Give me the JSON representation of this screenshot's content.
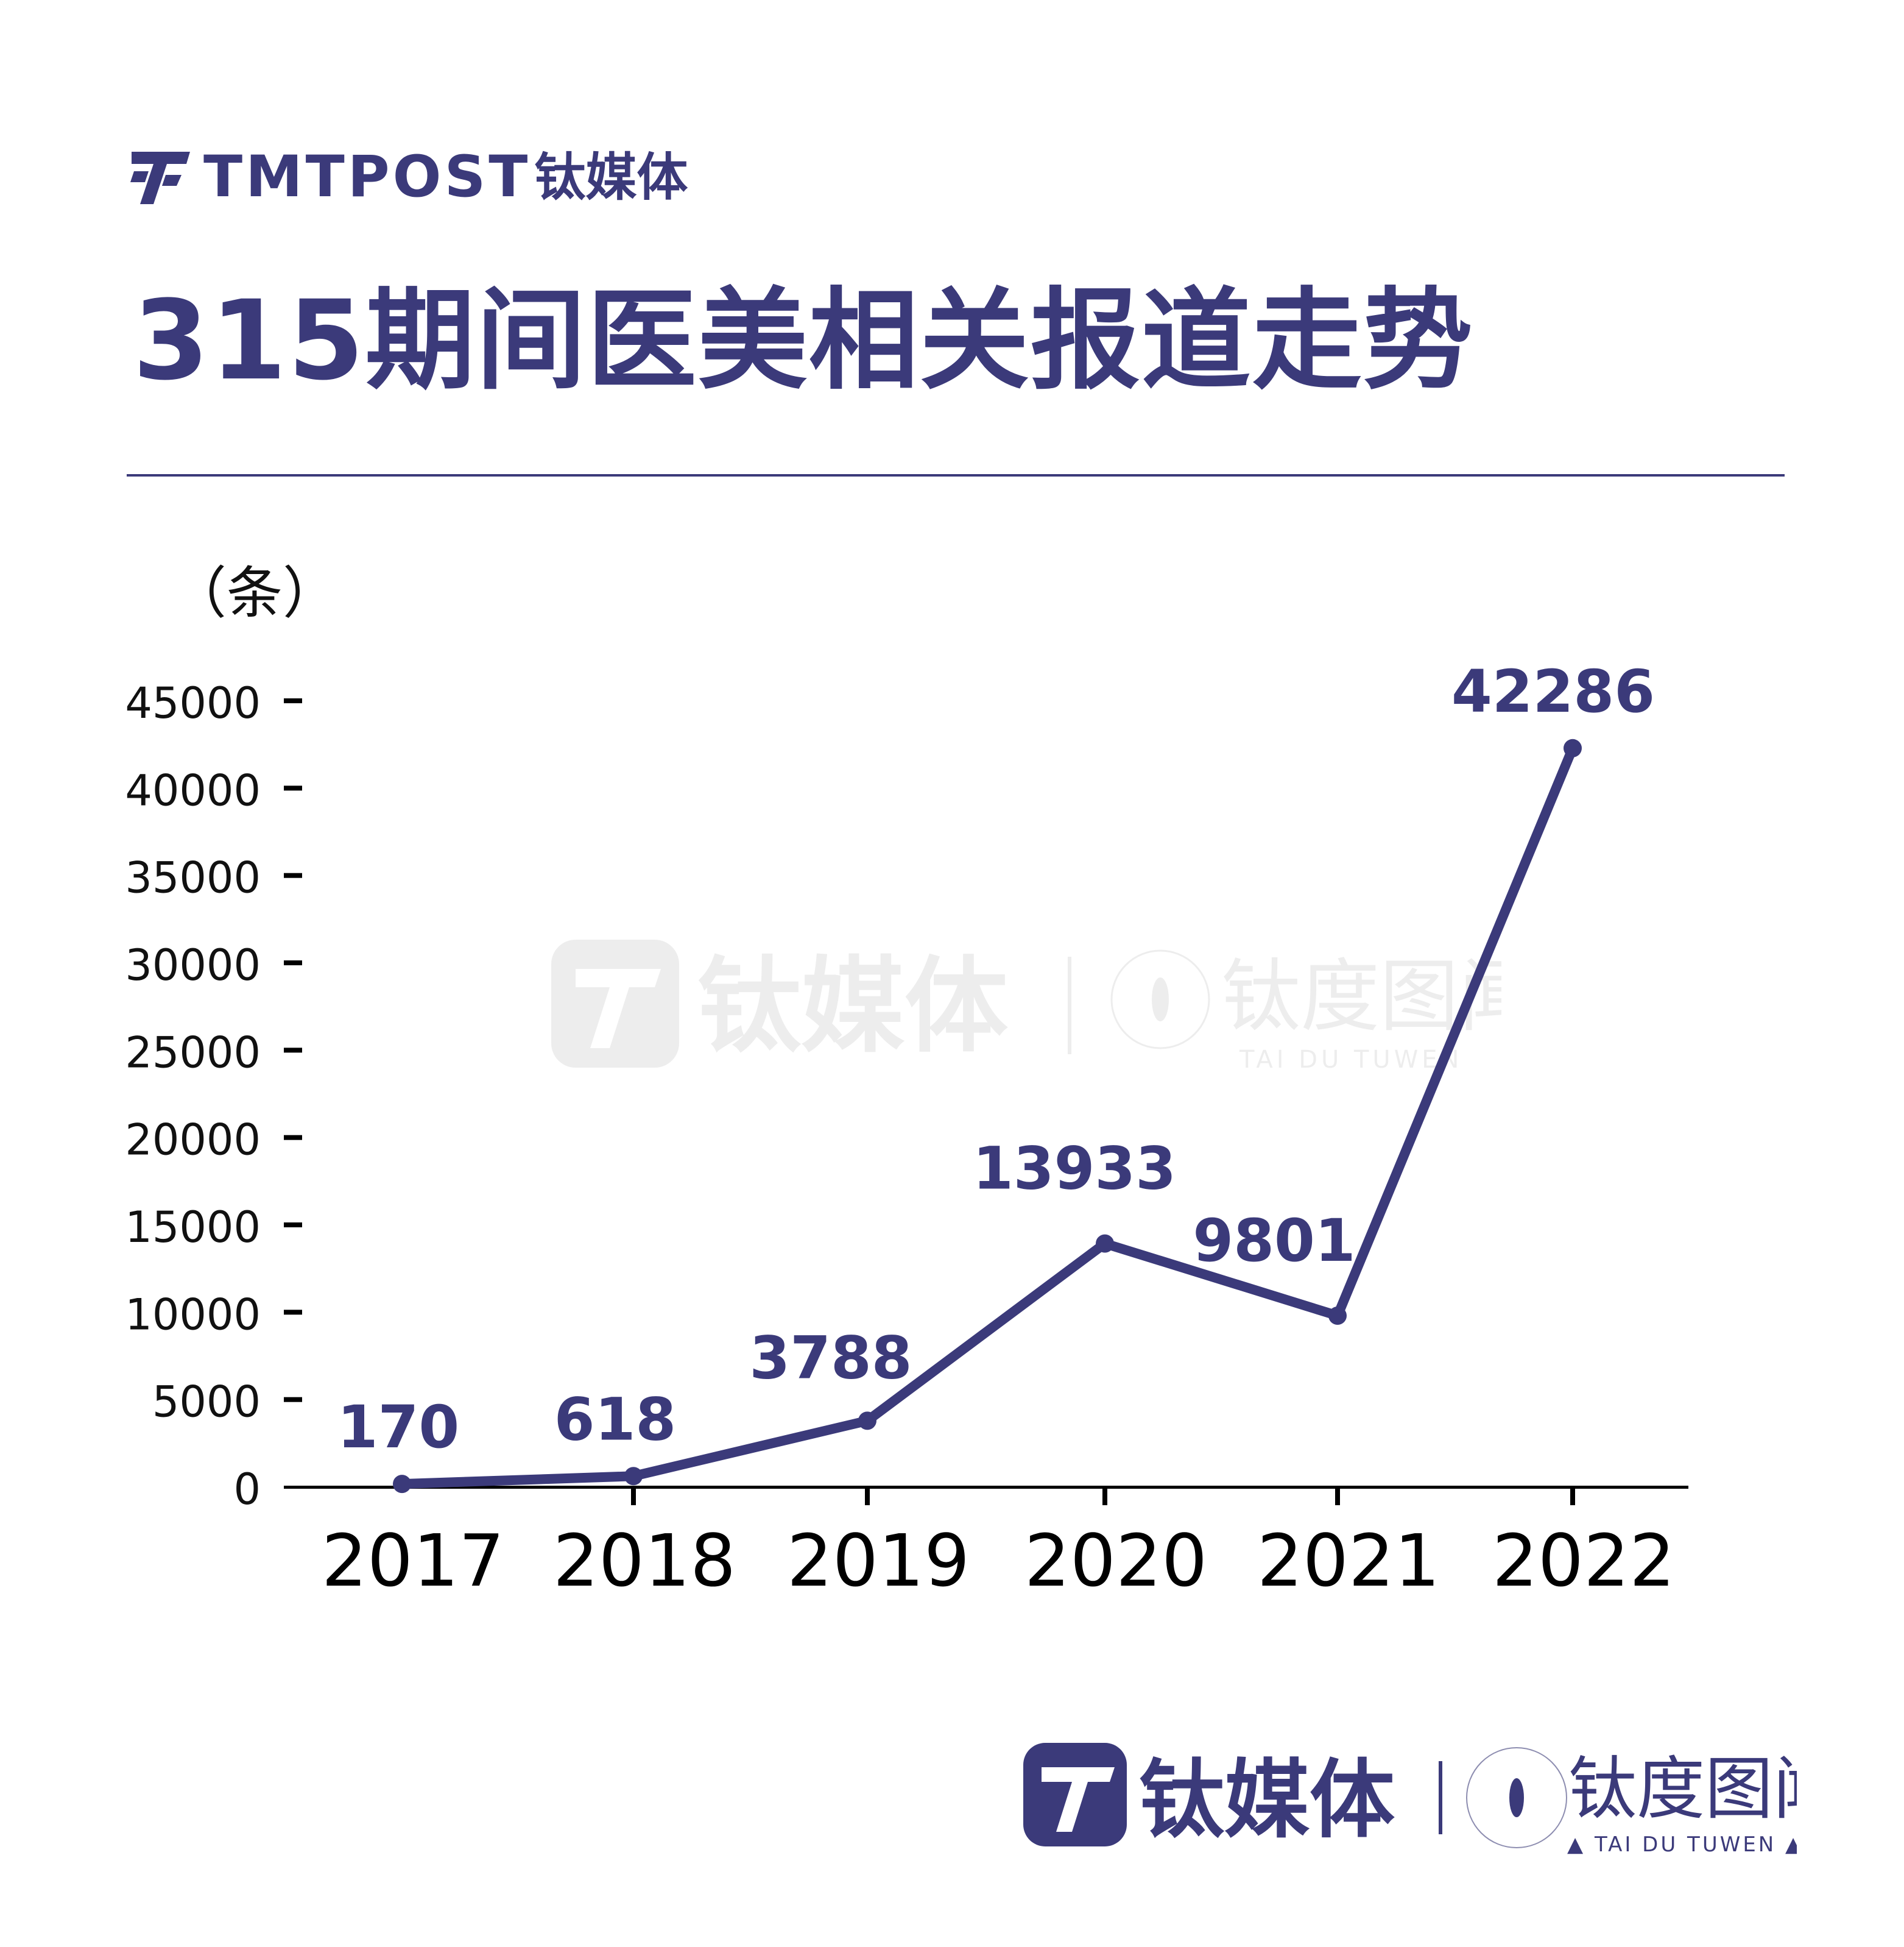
{
  "brand": {
    "latin": "TMTPOST",
    "chinese": "钛媒体"
  },
  "title": "315期间医美相关报道走势",
  "colors": {
    "primary": "#3b3a7a",
    "axis": "#000000",
    "watermark": "#bdbdbd"
  },
  "chart_data": {
    "type": "line",
    "title": "315期间医美相关报道走势",
    "ylabel": "（条）",
    "categories": [
      "2017",
      "2018",
      "2019",
      "2020",
      "2021",
      "2022"
    ],
    "values": [
      170,
      618,
      3788,
      13933,
      9801,
      42286
    ],
    "data_labels": [
      "170",
      "618",
      "3788",
      "13933",
      "9801",
      "42286"
    ],
    "yticks": [
      "45000",
      "40000",
      "35000",
      "30000",
      "25000",
      "20000",
      "15000",
      "10000",
      "5000",
      "0"
    ],
    "ytick_values": [
      45000,
      40000,
      35000,
      30000,
      25000,
      20000,
      15000,
      10000,
      5000,
      0
    ],
    "ylim": [
      0,
      45000
    ],
    "grid": false
  },
  "watermark": {
    "brand": "钛媒体",
    "sub_cn": "钛度图闻",
    "sub_en": "TAI DU TUWEN"
  },
  "footer": {
    "brand": "钛媒体",
    "sub_cn": "钛度图闻",
    "sub_en": "▲ TAI DU TUWEN ▲"
  }
}
